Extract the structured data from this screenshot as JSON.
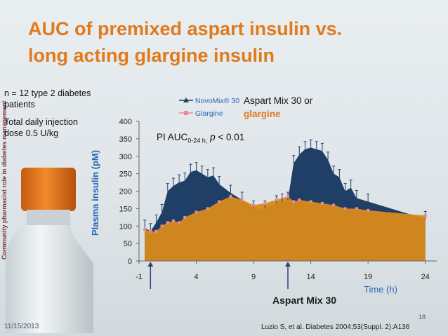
{
  "slide": {
    "title_line1": "AUC of premixed aspart insulin vs.",
    "title_line2": "long acting glargine insulin",
    "side_text": "Community pharmacist role in diabetes management",
    "note_n": "n = 12 type 2 diabetes patients",
    "note_dose": "Total daily injection dose 0.5 U/kg",
    "aspart_or": "Aspart Mix 30 or",
    "glargine_word": "glargine",
    "pauc_prefix": "PI AUC",
    "pauc_sub": "0-24 h;",
    "pauc_p": "p",
    "pauc_value": "< 0.01",
    "injection_label": "Aspart Mix 30",
    "date": "11/15/2013",
    "page_number": "18",
    "citation": "Luzio S, et al. Diabetes 2004;53(Suppl. 2):A136"
  },
  "colors": {
    "title": "#e07a1b",
    "novomix": "#1f3f66",
    "glargine": "#d98a1a",
    "axis_label": "#2a68b8",
    "arrow": "#3a3a7a"
  },
  "chart_data": {
    "type": "area",
    "ylabel": "Plasma insulin (pM)",
    "xlabel": "Time (h)",
    "xlim": [
      -1,
      25
    ],
    "ylim": [
      0,
      400
    ],
    "xticks": [
      -1,
      4,
      9,
      14,
      19,
      24
    ],
    "yticks": [
      0,
      50,
      100,
      150,
      200,
      250,
      300,
      350,
      400
    ],
    "injection_times": [
      0,
      12
    ],
    "series": [
      {
        "name": "NovoMix® 30",
        "x": [
          -0.5,
          0,
          0.5,
          1,
          1.5,
          2,
          2.5,
          3,
          3.5,
          4,
          4.5,
          5,
          5.5,
          6,
          7,
          8,
          9,
          10,
          11,
          11.5,
          12,
          12.5,
          13,
          13.5,
          14,
          14.5,
          15,
          15.5,
          16,
          16.5,
          17,
          17.5,
          18,
          19,
          24
        ],
        "values": [
          95,
          85,
          110,
          140,
          200,
          215,
          225,
          230,
          255,
          260,
          250,
          240,
          245,
          220,
          195,
          175,
          150,
          150,
          165,
          170,
          175,
          280,
          305,
          320,
          325,
          320,
          315,
          290,
          250,
          240,
          200,
          210,
          180,
          170,
          120
        ]
      },
      {
        "name": "Glargine",
        "x": [
          -0.5,
          0,
          0.5,
          1,
          1.5,
          2,
          2.5,
          3,
          4,
          5,
          6,
          7,
          8,
          9,
          10,
          11,
          12,
          12.5,
          13,
          14,
          15,
          16,
          17,
          18,
          19,
          24
        ],
        "values": [
          90,
          85,
          85,
          100,
          110,
          115,
          110,
          125,
          140,
          150,
          170,
          185,
          175,
          160,
          165,
          175,
          185,
          170,
          175,
          170,
          165,
          160,
          150,
          150,
          145,
          130
        ]
      }
    ]
  }
}
